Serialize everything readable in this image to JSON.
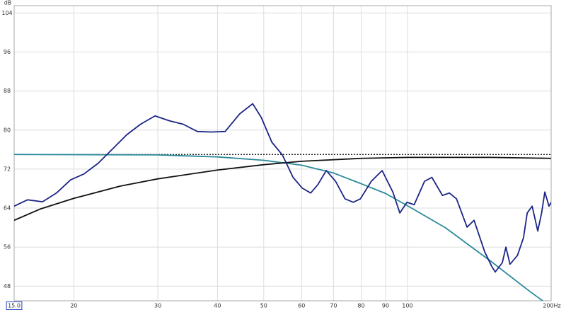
{
  "chart_data": {
    "type": "line",
    "y_label": "dB",
    "log_x": true,
    "grid": true,
    "xlim": [
      15,
      200
    ],
    "ylim": [
      45,
      105.5
    ],
    "xticks": [
      {
        "value": 15,
        "label": "15.0"
      },
      20,
      30,
      40,
      50,
      60,
      70,
      80,
      90,
      100,
      {
        "value": 200,
        "label": "200Hz"
      }
    ],
    "yticks": [
      48,
      56,
      64,
      72,
      80,
      88,
      96,
      104
    ],
    "series": [
      {
        "color": "#1c2585",
        "dash": "solid",
        "x": [
          15,
          16,
          17.2,
          18.4,
          19.7,
          21,
          22.5,
          24.1,
          25.8,
          27.6,
          29.6,
          31.7,
          33.9,
          36.3,
          38.8,
          41.5,
          44.5,
          47.4,
          49.4,
          52,
          54.7,
          57.6,
          60.2,
          62.7,
          64.9,
          67.6,
          70.7,
          74,
          77,
          79.7,
          84,
          88.5,
          93.2,
          96.4,
          99.8,
          103.3,
          108.6,
          112.5,
          118.4,
          122.4,
          126.7,
          133.3,
          137.9,
          145.2,
          150.1,
          152.7,
          158,
          160.8,
          164,
          170,
          175,
          178.2,
          182.5,
          187.5,
          191,
          194,
          197.9,
          200
        ],
        "values": [
          64.4,
          65.7,
          65.3,
          67.1,
          69.8,
          71.0,
          73.2,
          76.1,
          79.0,
          81.2,
          82.9,
          81.9,
          81.2,
          79.7,
          79.6,
          79.7,
          83.3,
          85.4,
          82.6,
          77.5,
          74.9,
          70.3,
          68.1,
          67.1,
          68.8,
          71.7,
          69.5,
          65.9,
          65.2,
          65.9,
          69.5,
          71.7,
          67.3,
          63.0,
          65.2,
          64.7,
          69.5,
          70.3,
          66.6,
          67.1,
          65.9,
          60.1,
          61.5,
          55.0,
          52.1,
          50.9,
          52.8,
          56.0,
          52.5,
          54.3,
          57.9,
          63.0,
          64.4,
          59.3,
          63.0,
          67.3,
          64.4,
          65.2
        ]
      },
      {
        "color": "#111111",
        "dash": "solid",
        "x": [
          15,
          17,
          20,
          25,
          30,
          40,
          50,
          60,
          80,
          100,
          150,
          200
        ],
        "values": [
          61.5,
          63.8,
          66,
          68.5,
          70,
          71.8,
          72.9,
          73.6,
          74.2,
          74.4,
          74.4,
          74.2
        ]
      },
      {
        "color": "#2a8a9a",
        "dash": "solid",
        "x": [
          15,
          30,
          40,
          50,
          60,
          70,
          80,
          90,
          100,
          120,
          150,
          180,
          192
        ],
        "values": [
          75,
          74.9,
          74.5,
          73.8,
          72.8,
          71.2,
          69,
          67,
          64.5,
          60,
          53,
          47,
          45
        ]
      },
      {
        "color": "#000000",
        "dash": "dotted",
        "x": [
          15,
          200
        ],
        "values": [
          75,
          75
        ]
      }
    ]
  }
}
